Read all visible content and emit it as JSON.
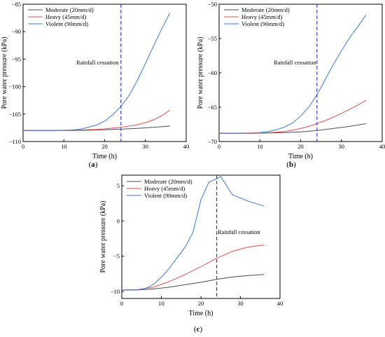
{
  "chart_data": [
    {
      "panel": "a",
      "type": "line",
      "xlabel": "Time (h)",
      "ylabel": "Pore water pressure (kPa)",
      "xlim": [
        0,
        40
      ],
      "ylim": [
        -110,
        -85
      ],
      "xticks": [
        0,
        10,
        20,
        30,
        40
      ],
      "yticks": [
        -110,
        -105,
        -100,
        -95,
        -90,
        -85
      ],
      "tick_labels_y": [
        "−110",
        "−105",
        "−100",
        "−95",
        "−90",
        "−85"
      ],
      "annotation": "Rainfall cessation",
      "cessation_x": 24,
      "legend": "top-left",
      "series": [
        {
          "name": "Moderate (20mm/d)",
          "color": "#4a4a5a",
          "x": [
            0,
            4,
            8,
            12,
            16,
            20,
            24,
            28,
            32,
            36
          ],
          "y": [
            -108.0,
            -108.0,
            -108.0,
            -108.0,
            -107.95,
            -107.85,
            -107.75,
            -107.6,
            -107.4,
            -107.2
          ]
        },
        {
          "name": "Heavy (45mm/d)",
          "color": "#e8514a",
          "x": [
            0,
            4,
            8,
            12,
            14,
            16,
            18,
            20,
            22,
            24,
            26,
            28,
            30,
            32,
            34,
            36
          ],
          "y": [
            -108.0,
            -108.0,
            -108.0,
            -107.95,
            -107.9,
            -107.85,
            -107.8,
            -107.7,
            -107.55,
            -107.4,
            -107.2,
            -106.95,
            -106.55,
            -106.05,
            -105.3,
            -104.3
          ]
        },
        {
          "name": "Violent (90mm/d)",
          "color": "#3a78d8",
          "x": [
            0,
            4,
            8,
            10,
            12,
            14,
            16,
            18,
            20,
            22,
            24,
            26,
            28,
            30,
            32,
            34,
            36
          ],
          "y": [
            -108.0,
            -108.0,
            -108.0,
            -107.95,
            -107.9,
            -107.75,
            -107.4,
            -107.0,
            -106.3,
            -105.1,
            -103.6,
            -101.6,
            -98.9,
            -95.8,
            -92.6,
            -89.5,
            -86.6
          ]
        }
      ]
    },
    {
      "panel": "b",
      "type": "line",
      "xlabel": "Time (h)",
      "ylabel": "Pore water pressure (kPa)",
      "xlim": [
        0,
        40
      ],
      "ylim": [
        -70,
        -50
      ],
      "xticks": [
        0,
        10,
        20,
        30,
        40
      ],
      "yticks": [
        -70,
        -65,
        -60,
        -55,
        -50
      ],
      "tick_labels_y": [
        "−70",
        "−65",
        "−60",
        "−55",
        "−50"
      ],
      "annotation": "Rainfall cessation",
      "cessation_x": 24,
      "legend": "top-left",
      "series": [
        {
          "name": "Moderate (20mm/d)",
          "color": "#4a4a5a",
          "x": [
            0,
            4,
            8,
            12,
            16,
            20,
            24,
            28,
            32,
            36
          ],
          "y": [
            -68.8,
            -68.8,
            -68.8,
            -68.75,
            -68.7,
            -68.6,
            -68.4,
            -68.1,
            -67.8,
            -67.4
          ]
        },
        {
          "name": "Heavy (45mm/d)",
          "color": "#e8514a",
          "x": [
            0,
            4,
            8,
            12,
            14,
            16,
            18,
            20,
            22,
            24,
            26,
            28,
            30,
            32,
            34,
            36
          ],
          "y": [
            -68.8,
            -68.8,
            -68.8,
            -68.7,
            -68.65,
            -68.55,
            -68.35,
            -68.1,
            -67.8,
            -67.4,
            -66.95,
            -66.45,
            -65.9,
            -65.3,
            -64.7,
            -64.0
          ]
        },
        {
          "name": "Violent (90mm/d)",
          "color": "#3a78d8",
          "x": [
            0,
            4,
            8,
            10,
            12,
            14,
            16,
            18,
            20,
            22,
            24,
            26,
            28,
            30,
            32,
            34,
            36
          ],
          "y": [
            -68.8,
            -68.8,
            -68.75,
            -68.7,
            -68.55,
            -68.3,
            -67.9,
            -67.3,
            -66.3,
            -65.0,
            -63.2,
            -61.0,
            -58.8,
            -56.8,
            -54.9,
            -53.3,
            -51.6
          ]
        }
      ]
    },
    {
      "panel": "c",
      "type": "line",
      "xlabel": "Time (h)",
      "ylabel": "Pore water pressure (kPa)",
      "xlim": [
        0,
        40
      ],
      "ylim": [
        -11,
        6.5
      ],
      "xticks": [
        0,
        10,
        20,
        30,
        40
      ],
      "yticks": [
        -10,
        -5,
        0,
        5
      ],
      "tick_labels_y": [
        "−10",
        "−5",
        "0",
        "5"
      ],
      "annotation": "Rainfall cessation",
      "cessation_x": 24,
      "legend": "top-left",
      "series": [
        {
          "name": "Moderate (20mm/d)",
          "color": "#4a4a5a",
          "x": [
            0,
            4,
            8,
            12,
            16,
            20,
            24,
            28,
            32,
            36
          ],
          "y": [
            -9.8,
            -9.8,
            -9.65,
            -9.4,
            -9.05,
            -8.7,
            -8.3,
            -7.95,
            -7.75,
            -7.6
          ]
        },
        {
          "name": "Heavy (45mm/d)",
          "color": "#e8514a",
          "x": [
            0,
            4,
            8,
            12,
            16,
            20,
            24,
            28,
            32,
            36
          ],
          "y": [
            -9.8,
            -9.75,
            -9.4,
            -8.6,
            -7.6,
            -6.5,
            -5.3,
            -4.3,
            -3.7,
            -3.4
          ]
        },
        {
          "name": "Violent (90mm/d)",
          "color": "#3a78d8",
          "x": [
            0,
            4,
            6,
            8,
            10,
            12,
            14,
            16,
            18,
            20,
            22,
            24,
            25,
            28,
            32,
            36
          ],
          "y": [
            -9.8,
            -9.8,
            -9.6,
            -9.0,
            -8.0,
            -6.7,
            -5.2,
            -3.7,
            -1.6,
            3.0,
            5.5,
            6.0,
            6.3,
            3.7,
            2.8,
            2.1
          ]
        }
      ]
    }
  ],
  "panel_labels": [
    "a",
    "b",
    "c"
  ]
}
